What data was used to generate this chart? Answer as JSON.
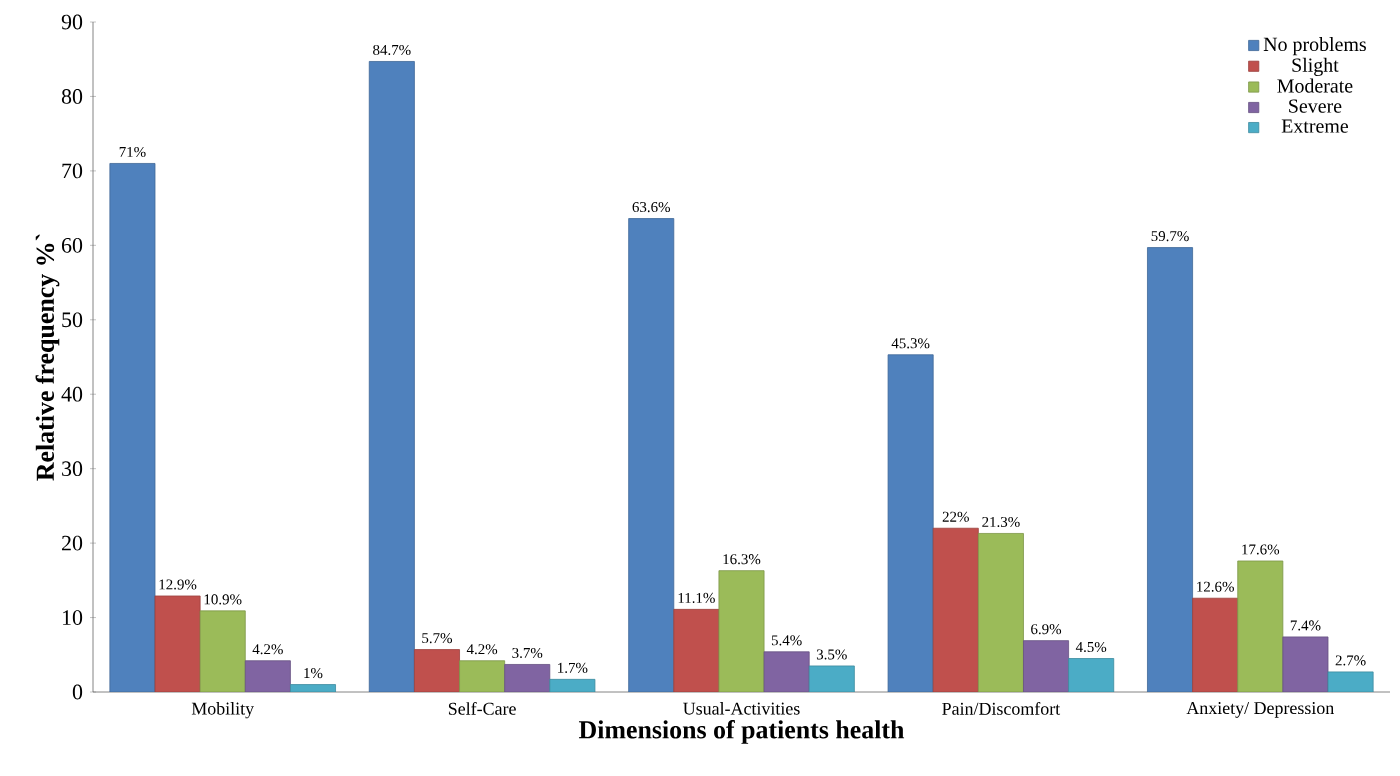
{
  "chart_data": {
    "type": "bar",
    "xlabel": "Dimensions of patients health",
    "ylabel": "Relative frequency %`",
    "categories": [
      "Mobility",
      "Self-Care",
      "Usual-Activities",
      "Pain/Discomfort",
      "Anxiety/ Depression"
    ],
    "series": [
      {
        "name": "No problems",
        "color": "#4f81bd",
        "values": [
          71,
          84.7,
          63.6,
          45.3,
          59.7
        ],
        "value_labels": [
          "71%",
          "84.7%",
          "63.6%",
          "45.3%",
          "59.7%"
        ]
      },
      {
        "name": "Slight",
        "color": "#c0504d",
        "values": [
          12.9,
          5.7,
          11.1,
          22,
          12.6
        ],
        "value_labels": [
          "12.9%",
          "5.7%",
          "11.1%",
          "22%",
          "12.6%"
        ]
      },
      {
        "name": "Moderate",
        "color": "#9bbb59",
        "values": [
          10.9,
          4.2,
          16.3,
          21.3,
          17.6
        ],
        "value_labels": [
          "10.9%",
          "4.2%",
          "16.3%",
          "21.3%",
          "17.6%"
        ]
      },
      {
        "name": "Severe",
        "color": "#8064a2",
        "values": [
          4.2,
          3.7,
          5.4,
          6.9,
          7.4
        ],
        "value_labels": [
          "4.2%",
          "3.7%",
          "5.4%",
          "6.9%",
          "7.4%"
        ]
      },
      {
        "name": "Extreme",
        "color": "#4bacc6",
        "values": [
          1,
          1.7,
          3.5,
          4.5,
          2.7
        ],
        "value_labels": [
          "1%",
          "1.7%",
          "3.5%",
          "4.5%",
          "2.7%"
        ]
      }
    ],
    "ylim": [
      0,
      90
    ],
    "yticks": [
      0,
      10,
      20,
      30,
      40,
      50,
      60,
      70,
      80,
      90
    ],
    "legend": "top right",
    "grid": false
  }
}
